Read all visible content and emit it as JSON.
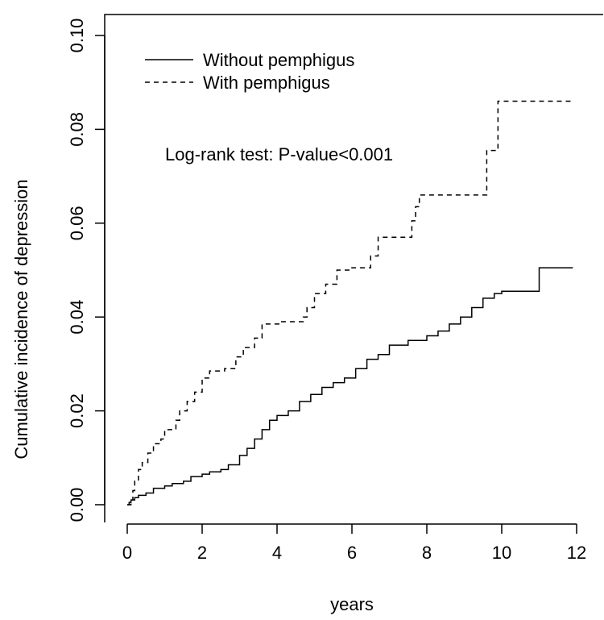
{
  "chart_data": {
    "type": "line",
    "title": "",
    "xlabel": "years",
    "ylabel": "Cumulative incidence of depression",
    "xlim": [
      0,
      12
    ],
    "ylim": [
      0,
      0.1
    ],
    "x_ticks": [
      0,
      2,
      4,
      6,
      8,
      10,
      12
    ],
    "x_tick_labels": [
      "0",
      "2",
      "4",
      "6",
      "8",
      "10",
      "12"
    ],
    "y_ticks": [
      0.0,
      0.02,
      0.04,
      0.06,
      0.08,
      0.1
    ],
    "y_tick_labels": [
      "0.00",
      "0.02",
      "0.04",
      "0.06",
      "0.08",
      "0.10"
    ],
    "grid": false,
    "legend_position": "top-left",
    "annotation": "Log-rank test: P-value<0.001",
    "series": [
      {
        "name": "Without pemphigus",
        "line_style": "solid",
        "color": "#000000",
        "x": [
          0,
          0.05,
          0.1,
          0.2,
          0.3,
          0.5,
          0.7,
          1.0,
          1.2,
          1.5,
          1.7,
          2.0,
          2.2,
          2.5,
          2.7,
          3.0,
          3.2,
          3.4,
          3.6,
          3.8,
          4.0,
          4.3,
          4.6,
          4.9,
          5.2,
          5.5,
          5.8,
          6.1,
          6.4,
          6.7,
          7.0,
          7.5,
          8.0,
          8.3,
          8.6,
          8.9,
          9.2,
          9.5,
          9.8,
          10.0,
          10.5,
          10.9,
          11.0,
          11.9
        ],
        "y": [
          0.0,
          0.0005,
          0.001,
          0.0015,
          0.002,
          0.0025,
          0.0035,
          0.004,
          0.0045,
          0.005,
          0.006,
          0.0065,
          0.007,
          0.0075,
          0.0085,
          0.0105,
          0.012,
          0.014,
          0.016,
          0.018,
          0.019,
          0.02,
          0.022,
          0.0235,
          0.025,
          0.026,
          0.027,
          0.029,
          0.031,
          0.032,
          0.034,
          0.035,
          0.036,
          0.037,
          0.0385,
          0.04,
          0.042,
          0.044,
          0.045,
          0.0455,
          0.0455,
          0.0455,
          0.0505,
          0.0505
        ]
      },
      {
        "name": "With pemphigus",
        "line_style": "dashed",
        "color": "#000000",
        "x": [
          0,
          0.1,
          0.15,
          0.2,
          0.3,
          0.4,
          0.55,
          0.7,
          0.9,
          1.0,
          1.3,
          1.4,
          1.6,
          1.8,
          2.0,
          2.2,
          2.6,
          2.9,
          3.1,
          3.4,
          3.6,
          4.1,
          4.7,
          4.8,
          5.0,
          5.3,
          5.6,
          6.0,
          6.5,
          6.7,
          7.3,
          7.6,
          7.7,
          7.8,
          8.3,
          9.5,
          9.6,
          9.8,
          9.9,
          11.9
        ],
        "y": [
          0.0,
          0.001,
          0.003,
          0.005,
          0.0075,
          0.009,
          0.011,
          0.013,
          0.014,
          0.016,
          0.018,
          0.02,
          0.022,
          0.024,
          0.027,
          0.0285,
          0.029,
          0.0315,
          0.0335,
          0.0355,
          0.0385,
          0.039,
          0.04,
          0.042,
          0.045,
          0.047,
          0.05,
          0.0505,
          0.053,
          0.057,
          0.057,
          0.0605,
          0.0635,
          0.066,
          0.066,
          0.066,
          0.0755,
          0.0755,
          0.086,
          0.086
        ]
      }
    ]
  }
}
